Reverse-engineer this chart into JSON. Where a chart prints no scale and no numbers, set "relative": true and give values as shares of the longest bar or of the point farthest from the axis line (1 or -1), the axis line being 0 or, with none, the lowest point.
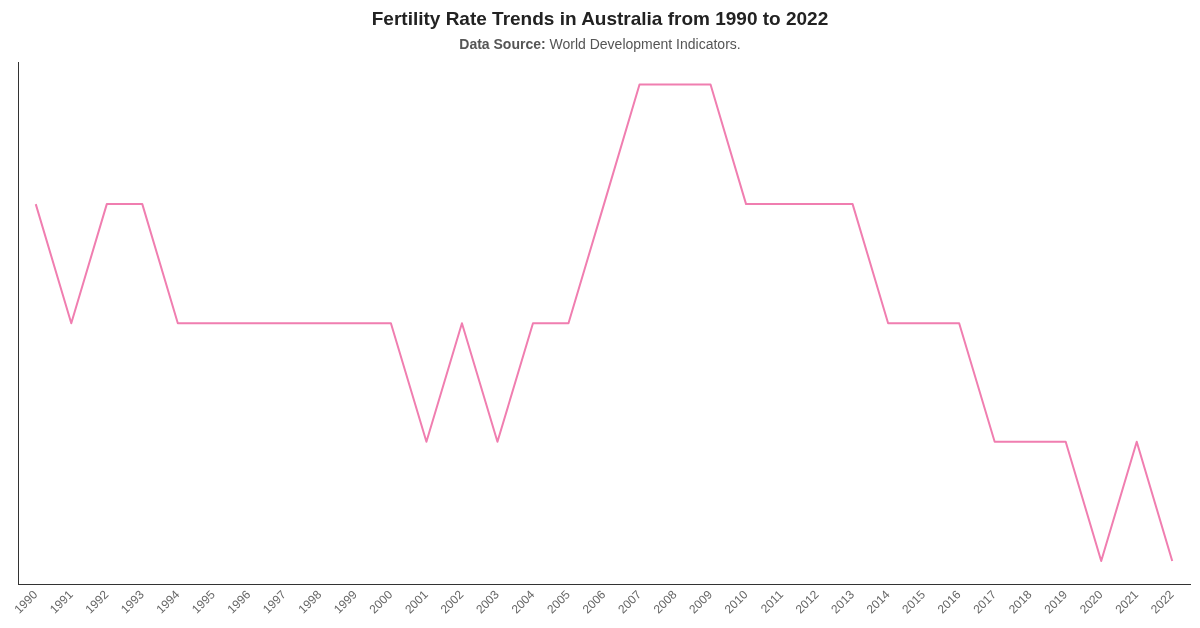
{
  "chart_data": {
    "type": "line",
    "title": "Fertility Rate Trends in Australia from 1990 to 2022",
    "subtitle": "Data Source: World Development Indicators.",
    "relative": true,
    "categories": [
      "1990",
      "1991",
      "1992",
      "1993",
      "1994",
      "1995",
      "1996",
      "1997",
      "1998",
      "1999",
      "2000",
      "2001",
      "2002",
      "2003",
      "2004",
      "2005",
      "2006",
      "2007",
      "2008",
      "2009",
      "2010",
      "2011",
      "2012",
      "2013",
      "2014",
      "2015",
      "2016",
      "2017",
      "2018",
      "2019",
      "2020",
      "2021",
      "2022"
    ],
    "series": [
      {
        "color": "#f07eb0",
        "values": [
          0.761,
          0.523,
          0.761,
          0.761,
          0.523,
          0.523,
          0.523,
          0.523,
          0.523,
          0.523,
          0.523,
          0.286,
          0.523,
          0.286,
          0.523,
          0.523,
          0.761,
          1,
          1,
          1,
          0.761,
          0.761,
          0.761,
          0.761,
          0.523,
          0.523,
          0.523,
          0.286,
          0.286,
          0.286,
          0.048,
          0.286,
          0.048
        ]
      }
    ],
    "grid": false,
    "legend": false,
    "marker": "none",
    "line_style": "solid"
  }
}
